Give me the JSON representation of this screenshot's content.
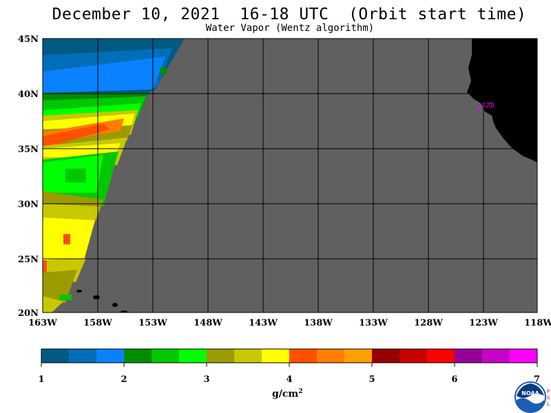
{
  "header": {
    "title": "December 10, 2021  16-18 UTC  (Orbit start time)",
    "subtitle": "Water Vapor (Wentz algorithm)"
  },
  "map": {
    "lat_labels": [
      "45N",
      "40N",
      "35N",
      "30N",
      "25N",
      "20N"
    ],
    "lon_labels": [
      "163W",
      "158W",
      "153W",
      "148W",
      "143W",
      "138W",
      "133W",
      "128W",
      "123W",
      "118W"
    ],
    "station_label": "CZD",
    "colors": {
      "no_data": "#606060",
      "land": "#000000",
      "grid": "#000000",
      "station": "#ff00ff"
    }
  },
  "colorbar": {
    "colors": [
      "#005a82",
      "#006eb9",
      "#0a82ff",
      "#008c00",
      "#00c800",
      "#00ff00",
      "#9b9b00",
      "#c8c800",
      "#ffff00",
      "#ff5000",
      "#ff7d00",
      "#ffa000",
      "#960000",
      "#c80000",
      "#ff0000",
      "#960096",
      "#c800c8",
      "#ff00ff"
    ],
    "tick_labels": [
      "1",
      "2",
      "3",
      "4",
      "5",
      "6",
      "7"
    ],
    "units_base": "g/cm",
    "units_exp": "2"
  },
  "logo": {
    "text": "NOAA",
    "side_text": [
      "P",
      "S",
      "L"
    ]
  }
}
